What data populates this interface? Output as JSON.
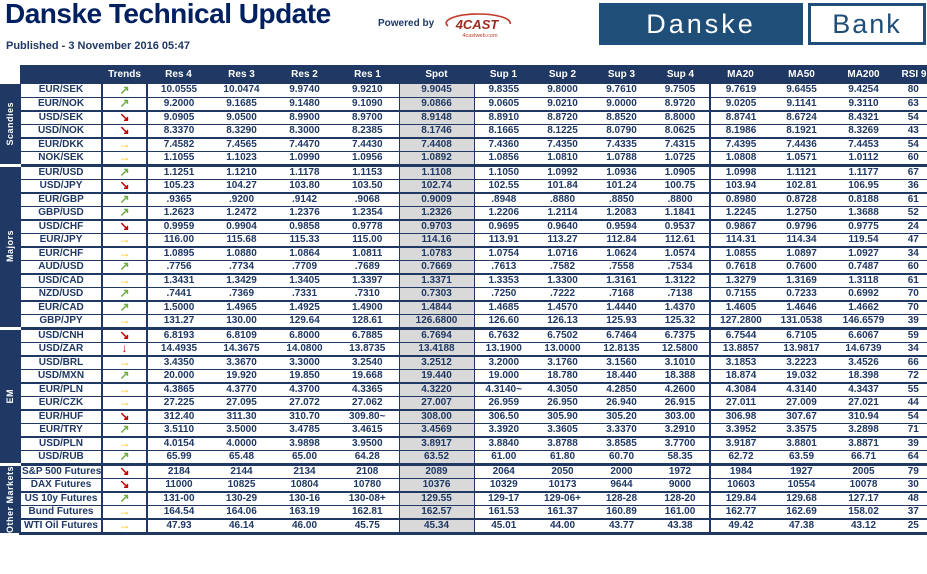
{
  "header": {
    "title": "Danske Technical Update",
    "published": "Published - 3 November 2016 05:47",
    "powered_by": "Powered by",
    "powered_logo": "4CAST",
    "powered_logo_sub": "4castweb.com",
    "logo": {
      "danske": "Danske",
      "bank": "Bank"
    }
  },
  "colors": {
    "navy": "#1f3864",
    "logo_navy": "#1f4e79",
    "title_blue": "#002060",
    "spot_gray": "#d9d9d9",
    "trend_up_green": "#6fae44",
    "trend_down_red": "#c00000",
    "trend_flat_yellow": "#ffc000",
    "fourcast_red": "#9e2b1e"
  },
  "trend_glyphs": {
    "up": "↗",
    "down": "↘",
    "flat": "→",
    "strong_down": "↓"
  },
  "table": {
    "columns": [
      "Trends",
      "Res 4",
      "Res 3",
      "Res 2",
      "Res 1",
      "Spot",
      "Sup 1",
      "Sup 2",
      "Sup 3",
      "Sup 4",
      "MA20",
      "MA50",
      "MA200",
      "RSI 9"
    ],
    "sections": [
      {
        "label": "Scandies",
        "rows": [
          {
            "pair": "EUR/SEK",
            "trend": "up",
            "values": [
              "10.0555",
              "10.0474",
              "9.9740",
              "9.9210",
              "9.9045",
              "9.8355",
              "9.8000",
              "9.7610",
              "9.7505",
              "9.7619",
              "9.6455",
              "9.4254",
              "80"
            ]
          },
          {
            "pair": "EUR/NOK",
            "trend": "up",
            "values": [
              "9.2000",
              "9.1685",
              "9.1480",
              "9.1090",
              "9.0866",
              "9.0605",
              "9.0210",
              "9.0000",
              "8.9720",
              "9.0205",
              "9.1141",
              "9.3110",
              "63"
            ]
          },
          {
            "pair": "USD/SEK",
            "trend": "down",
            "values": [
              "9.0905",
              "9.0500",
              "8.9900",
              "8.9700",
              "8.9148",
              "8.8910",
              "8.8720",
              "8.8520",
              "8.8000",
              "8.8741",
              "8.6724",
              "8.4321",
              "54"
            ]
          },
          {
            "pair": "USD/NOK",
            "trend": "down",
            "values": [
              "8.3370",
              "8.3290",
              "8.3000",
              "8.2385",
              "8.1746",
              "8.1665",
              "8.1225",
              "8.0790",
              "8.0625",
              "8.1986",
              "8.1921",
              "8.3269",
              "43"
            ]
          },
          {
            "pair": "EUR/DKK",
            "trend": "flat",
            "values": [
              "7.4582",
              "7.4565",
              "7.4470",
              "7.4430",
              "7.4408",
              "7.4360",
              "7.4350",
              "7.4335",
              "7.4315",
              "7.4395",
              "7.4436",
              "7.4453",
              "54"
            ]
          },
          {
            "pair": "NOK/SEK",
            "trend": "flat",
            "values": [
              "1.1055",
              "1.1023",
              "1.0990",
              "1.0956",
              "1.0892",
              "1.0856",
              "1.0810",
              "1.0788",
              "1.0725",
              "1.0808",
              "1.0571",
              "1.0112",
              "60"
            ]
          }
        ]
      },
      {
        "label": "Majors",
        "rows": [
          {
            "pair": "EUR/USD",
            "trend": "up",
            "values": [
              "1.1251",
              "1.1210",
              "1.1178",
              "1.1153",
              "1.1108",
              "1.1050",
              "1.0992",
              "1.0936",
              "1.0905",
              "1.0998",
              "1.1121",
              "1.1177",
              "67"
            ]
          },
          {
            "pair": "USD/JPY",
            "trend": "down",
            "values": [
              "105.23",
              "104.27",
              "103.80",
              "103.50",
              "102.74",
              "102.55",
              "101.84",
              "101.24",
              "100.75",
              "103.94",
              "102.81",
              "106.95",
              "36"
            ]
          },
          {
            "pair": "EUR/GBP",
            "trend": "up",
            "values": [
              ".9365",
              ".9200",
              ".9142",
              ".9068",
              "0.9009",
              ".8948",
              ".8880",
              ".8850",
              ".8800",
              "0.8980",
              "0.8728",
              "0.8188",
              "61"
            ]
          },
          {
            "pair": "GBP/USD",
            "trend": "up",
            "values": [
              "1.2623",
              "1.2472",
              "1.2376",
              "1.2354",
              "1.2326",
              "1.2206",
              "1.2114",
              "1.2083",
              "1.1841",
              "1.2245",
              "1.2750",
              "1.3688",
              "52"
            ]
          },
          {
            "pair": "USD/CHF",
            "trend": "down",
            "values": [
              "0.9959",
              "0.9904",
              "0.9858",
              "0.9778",
              "0.9703",
              "0.9695",
              "0.9640",
              "0.9594",
              "0.9537",
              "0.9867",
              "0.9796",
              "0.9775",
              "24"
            ]
          },
          {
            "pair": "EUR/JPY",
            "trend": "flat",
            "values": [
              "116.00",
              "115.68",
              "115.33",
              "115.00",
              "114.16",
              "113.91",
              "113.27",
              "112.84",
              "112.61",
              "114.31",
              "114.34",
              "119.54",
              "47"
            ]
          },
          {
            "pair": "EUR/CHF",
            "trend": "flat",
            "values": [
              "1.0895",
              "1.0880",
              "1.0864",
              "1.0811",
              "1.0783",
              "1.0754",
              "1.0716",
              "1.0624",
              "1.0574",
              "1.0855",
              "1.0897",
              "1.0927",
              "34"
            ]
          },
          {
            "pair": "AUD/USD",
            "trend": "up",
            "values": [
              ".7756",
              ".7734",
              ".7709",
              ".7689",
              "0.7669",
              ".7613",
              ".7582",
              ".7558",
              ".7534",
              "0.7618",
              "0.7600",
              "0.7487",
              "60"
            ]
          },
          {
            "pair": "USD/CAD",
            "trend": "flat",
            "values": [
              "1.3431",
              "1.3429",
              "1.3405",
              "1.3397",
              "1.3371",
              "1.3353",
              "1.3300",
              "1.3161",
              "1.3122",
              "1.3279",
              "1.3169",
              "1.3118",
              "61"
            ]
          },
          {
            "pair": "NZD/USD",
            "trend": "up",
            "values": [
              ".7441",
              ".7369",
              ".7331",
              ".7310",
              "0.7303",
              ".7250",
              ".7222",
              ".7168",
              ".7138",
              "0.7155",
              "0.7233",
              "0.6992",
              "70"
            ]
          },
          {
            "pair": "EUR/CAD",
            "trend": "up",
            "values": [
              "1.5000",
              "1.4965",
              "1.4925",
              "1.4900",
              "1.4844",
              "1.4685",
              "1.4570",
              "1.4440",
              "1.4370",
              "1.4605",
              "1.4646",
              "1.4662",
              "70"
            ]
          },
          {
            "pair": "GBP/JPY",
            "trend": "flat",
            "values": [
              "131.27",
              "130.00",
              "129.64",
              "128.61",
              "126.6800",
              "126.60",
              "126.13",
              "125.93",
              "125.32",
              "127.2800",
              "131.0538",
              "146.6579",
              "39"
            ]
          }
        ]
      },
      {
        "label": "EM",
        "rows": [
          {
            "pair": "USD/CNH",
            "trend": "down",
            "values": [
              "6.8193",
              "6.8109",
              "6.8000",
              "6.7885",
              "6.7694",
              "6.7632",
              "6.7502",
              "6.7464",
              "6.7375",
              "6.7544",
              "6.7105",
              "6.6067",
              "59"
            ]
          },
          {
            "pair": "USD/ZAR",
            "trend": "strong_down",
            "values": [
              "14.4935",
              "14.3675",
              "14.0800",
              "13.8735",
              "13.4188",
              "13.1900",
              "13.0000",
              "12.8135",
              "12.5800",
              "13.8857",
              "13.9817",
              "14.6739",
              "34"
            ]
          },
          {
            "pair": "USD/BRL",
            "trend": "flat",
            "values": [
              "3.4350",
              "3.3670",
              "3.3000",
              "3.2540",
              "3.2512",
              "3.2000",
              "3.1760",
              "3.1560",
              "3.1010",
              "3.1853",
              "3.2223",
              "3.4526",
              "66"
            ]
          },
          {
            "pair": "USD/MXN",
            "trend": "up",
            "values": [
              "20.000",
              "19.920",
              "19.850",
              "19.668",
              "19.440",
              "19.000",
              "18.780",
              "18.440",
              "18.388",
              "18.874",
              "19.032",
              "18.398",
              "72"
            ]
          },
          {
            "pair": "EUR/PLN",
            "trend": "flat",
            "values": [
              "4.3865",
              "4.3770",
              "4.3700",
              "4.3365",
              "4.3220",
              "4.3140~",
              "4.3050",
              "4.2850",
              "4.2600",
              "4.3084",
              "4.3140",
              "4.3437",
              "55"
            ]
          },
          {
            "pair": "EUR/CZK",
            "trend": "flat",
            "values": [
              "27.225",
              "27.095",
              "27.072",
              "27.062",
              "27.007",
              "26.959",
              "26.950",
              "26.940",
              "26.915",
              "27.011",
              "27.009",
              "27.021",
              "44"
            ]
          },
          {
            "pair": "EUR/HUF",
            "trend": "down",
            "values": [
              "312.40",
              "311.30",
              "310.70",
              "309.80~",
              "308.00",
              "306.50",
              "305.90",
              "305.20",
              "303.00",
              "306.98",
              "307.67",
              "310.94",
              "54"
            ]
          },
          {
            "pair": "EUR/TRY",
            "trend": "up",
            "values": [
              "3.5110",
              "3.5000",
              "3.4785",
              "3.4615",
              "3.4569",
              "3.3920",
              "3.3605",
              "3.3370",
              "3.2910",
              "3.3952",
              "3.3575",
              "3.2898",
              "71"
            ]
          },
          {
            "pair": "USD/PLN",
            "trend": "flat",
            "values": [
              "4.0154",
              "4.0000",
              "3.9898",
              "3.9500",
              "3.8917",
              "3.8840",
              "3.8788",
              "3.8585",
              "3.7700",
              "3.9187",
              "3.8801",
              "3.8871",
              "39"
            ]
          },
          {
            "pair": "USD/RUB",
            "trend": "up",
            "values": [
              "65.99",
              "65.48",
              "65.00",
              "64.28",
              "63.52",
              "61.00",
              "61.80",
              "60.70",
              "58.35",
              "62.72",
              "63.59",
              "66.71",
              "64"
            ]
          }
        ]
      },
      {
        "label": "Other Markets",
        "rows": [
          {
            "pair": "S&P 500 Futures",
            "trend": "down",
            "values": [
              "2184",
              "2144",
              "2134",
              "2108",
              "2089",
              "2064",
              "2050",
              "2000",
              "1972",
              "1984",
              "1927",
              "2005",
              "79"
            ]
          },
          {
            "pair": "DAX Futures",
            "trend": "down",
            "values": [
              "11000",
              "10825",
              "10804",
              "10780",
              "10376",
              "10329",
              "10173",
              "9644",
              "9000",
              "10603",
              "10554",
              "10078",
              "30"
            ]
          },
          {
            "pair": "US 10y Futures",
            "trend": "up",
            "values": [
              "131-00",
              "130-29",
              "130-16",
              "130-08+",
              "129.55",
              "129-17",
              "129-06+",
              "128-28",
              "128-20",
              "129.84",
              "129.68",
              "127.17",
              "48"
            ]
          },
          {
            "pair": "Bund Futures",
            "trend": "flat",
            "values": [
              "164.54",
              "164.06",
              "163.19",
              "162.81",
              "162.57",
              "161.53",
              "161.37",
              "160.89",
              "161.00",
              "162.77",
              "162.69",
              "158.02",
              "37"
            ]
          },
          {
            "pair": "WTI Oil Futures",
            "trend": "flat",
            "values": [
              "47.93",
              "46.14",
              "46.00",
              "45.75",
              "45.34",
              "45.01",
              "44.00",
              "43.77",
              "43.38",
              "49.42",
              "47.38",
              "43.12",
              "25"
            ]
          }
        ]
      }
    ]
  }
}
